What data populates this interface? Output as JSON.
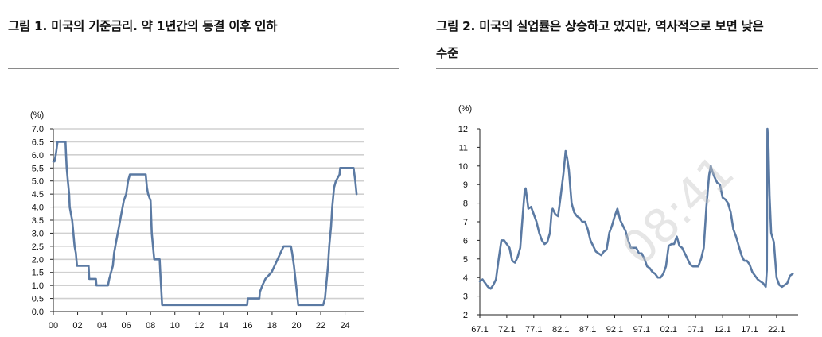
{
  "figures": [
    {
      "title_lines": [
        "그림 1. 미국의 기준금리. 약 1년간의 동결 이후 인하"
      ]
    },
    {
      "title_lines": [
        "그림 2. 미국의 실업률은 상승하고 있지만, 역사적으로 보면 낮은",
        "수준"
      ]
    }
  ],
  "watermark": "08:41",
  "colors": {
    "line": "#5b7aa3",
    "grid": "#d0d0d0",
    "axis": "#222222"
  },
  "chart_data": [
    {
      "type": "line",
      "title": "그림 1. 미국의 기준금리. 약 1년간의 동결 이후 인하",
      "unit_label": "(%)",
      "xlim": [
        2000,
        2025.6
      ],
      "ylim": [
        0,
        7
      ],
      "grid": true,
      "x_tick_values": [
        2000,
        2002,
        2004,
        2006,
        2008,
        2010,
        2012,
        2014,
        2016,
        2018,
        2020,
        2022,
        2024
      ],
      "x_tick_labels": [
        "00",
        "02",
        "04",
        "06",
        "08",
        "10",
        "12",
        "14",
        "16",
        "18",
        "20",
        "22",
        "24"
      ],
      "y_tick_values": [
        0,
        0.5,
        1,
        1.5,
        2,
        2.5,
        3,
        3.5,
        4,
        4.5,
        5,
        5.5,
        6,
        6.5,
        7
      ],
      "y_tick_labels": [
        "0.0",
        "0.5",
        "1.0",
        "1.5",
        "2.0",
        "2.5",
        "3.0",
        "3.5",
        "4.0",
        "4.5",
        "5.0",
        "5.5",
        "6.0",
        "6.5",
        "7.0"
      ],
      "series": [
        {
          "x": [
            2000.0,
            2000.1,
            2000.2,
            2000.35,
            2000.5,
            2001.0,
            2001.05,
            2001.1,
            2001.2,
            2001.3,
            2001.35,
            2001.45,
            2001.55,
            2001.65,
            2001.75,
            2001.85,
            2001.9,
            2001.95,
            2002.0,
            2002.9,
            2002.95,
            2003.5,
            2003.55,
            2004.5,
            2004.6,
            2004.75,
            2004.9,
            2005.0,
            2005.2,
            2005.4,
            2005.6,
            2005.8,
            2006.0,
            2006.15,
            2006.3,
            2006.5,
            2007.6,
            2007.7,
            2007.8,
            2008.0,
            2008.1,
            2008.25,
            2008.3,
            2008.75,
            2008.8,
            2008.95,
            2015.95,
            2016.0,
            2016.95,
            2017.0,
            2017.2,
            2017.45,
            2017.95,
            2018.2,
            2018.45,
            2018.7,
            2018.95,
            2019.55,
            2019.65,
            2019.8,
            2020.15,
            2020.2,
            2022.2,
            2022.35,
            2022.45,
            2022.6,
            2022.7,
            2022.85,
            2022.95,
            2023.1,
            2023.25,
            2023.55,
            2023.6,
            2024.7,
            2024.85,
            2024.95
          ],
          "y": [
            5.75,
            5.75,
            6.0,
            6.5,
            6.5,
            6.5,
            6.0,
            5.5,
            5.0,
            4.5,
            4.0,
            3.75,
            3.5,
            3.0,
            2.5,
            2.25,
            2.0,
            1.75,
            1.75,
            1.75,
            1.25,
            1.25,
            1.0,
            1.0,
            1.25,
            1.5,
            1.75,
            2.25,
            2.75,
            3.25,
            3.75,
            4.25,
            4.5,
            5.0,
            5.25,
            5.25,
            5.25,
            4.75,
            4.5,
            4.25,
            3.0,
            2.25,
            2.0,
            2.0,
            1.5,
            0.25,
            0.25,
            0.5,
            0.5,
            0.75,
            1.0,
            1.25,
            1.5,
            1.75,
            2.0,
            2.25,
            2.5,
            2.5,
            2.25,
            1.75,
            0.25,
            0.25,
            0.25,
            0.5,
            1.0,
            1.75,
            2.5,
            3.25,
            4.0,
            4.75,
            5.0,
            5.25,
            5.5,
            5.5,
            5.0,
            4.5
          ]
        }
      ]
    },
    {
      "type": "line",
      "title": "그림 2. 미국의 실업률은 상승하고 있지만, 역사적으로 보면 낮은 수준",
      "unit_label": "(%)",
      "xlim": [
        1967,
        2026
      ],
      "ylim": [
        2,
        12
      ],
      "grid": false,
      "x_tick_values": [
        1967,
        1972,
        1977,
        1982,
        1987,
        1992,
        1997,
        2002,
        2007,
        2012,
        2017,
        2022
      ],
      "x_tick_labels": [
        "67.1",
        "72.1",
        "77.1",
        "82.1",
        "87.1",
        "92.1",
        "97.1",
        "02.1",
        "07.1",
        "12.1",
        "17.1",
        "22.1"
      ],
      "y_tick_values": [
        2,
        3,
        4,
        5,
        6,
        7,
        8,
        9,
        10,
        11,
        12
      ],
      "y_tick_labels": [
        "2",
        "3",
        "4",
        "5",
        "6",
        "7",
        "8",
        "9",
        "10",
        "11",
        "12"
      ],
      "series": [
        {
          "x": [
            1967.0,
            1967.5,
            1968.0,
            1968.5,
            1969.0,
            1969.5,
            1970.0,
            1970.5,
            1971.0,
            1971.5,
            1972.0,
            1972.5,
            1973.0,
            1973.5,
            1974.0,
            1974.5,
            1975.0,
            1975.3,
            1975.5,
            1976.0,
            1976.5,
            1977.0,
            1977.5,
            1978.0,
            1978.5,
            1979.0,
            1979.5,
            1980.0,
            1980.3,
            1980.5,
            1981.0,
            1981.5,
            1982.0,
            1982.5,
            1982.9,
            1983.2,
            1983.5,
            1984.0,
            1984.5,
            1985.0,
            1985.5,
            1986.0,
            1986.5,
            1987.0,
            1987.5,
            1988.0,
            1988.5,
            1989.0,
            1989.5,
            1990.0,
            1990.5,
            1991.0,
            1991.5,
            1992.0,
            1992.5,
            1993.0,
            1993.5,
            1994.0,
            1994.5,
            1995.0,
            1995.5,
            1996.0,
            1996.5,
            1997.0,
            1997.5,
            1998.0,
            1998.5,
            1999.0,
            1999.5,
            2000.0,
            2000.5,
            2001.0,
            2001.5,
            2002.0,
            2002.5,
            2003.0,
            2003.5,
            2004.0,
            2004.5,
            2005.0,
            2005.5,
            2006.0,
            2006.5,
            2007.0,
            2007.5,
            2008.0,
            2008.5,
            2009.0,
            2009.5,
            2009.8,
            2010.0,
            2010.5,
            2011.0,
            2011.5,
            2012.0,
            2012.5,
            2013.0,
            2013.5,
            2014.0,
            2014.5,
            2015.0,
            2015.5,
            2016.0,
            2016.5,
            2017.0,
            2017.5,
            2018.0,
            2018.5,
            2019.0,
            2019.5,
            2020.0,
            2020.2,
            2020.3,
            2020.5,
            2020.7,
            2021.0,
            2021.5,
            2022.0,
            2022.5,
            2023.0,
            2023.5,
            2024.0,
            2024.5,
            2025.0
          ],
          "y": [
            3.8,
            3.9,
            3.7,
            3.5,
            3.4,
            3.6,
            3.9,
            5.0,
            6.0,
            6.0,
            5.8,
            5.6,
            4.9,
            4.8,
            5.1,
            5.6,
            7.5,
            8.6,
            8.8,
            7.7,
            7.8,
            7.4,
            7.0,
            6.4,
            6.0,
            5.8,
            5.9,
            6.4,
            7.5,
            7.7,
            7.4,
            7.3,
            8.4,
            9.6,
            10.8,
            10.4,
            9.8,
            8.0,
            7.5,
            7.3,
            7.2,
            7.0,
            7.0,
            6.6,
            6.0,
            5.7,
            5.4,
            5.3,
            5.2,
            5.4,
            5.5,
            6.4,
            6.8,
            7.3,
            7.7,
            7.1,
            6.8,
            6.5,
            6.0,
            5.6,
            5.6,
            5.6,
            5.3,
            5.3,
            5.0,
            4.6,
            4.5,
            4.3,
            4.2,
            4.0,
            4.0,
            4.2,
            4.6,
            5.7,
            5.8,
            5.8,
            6.2,
            5.7,
            5.6,
            5.3,
            5.0,
            4.7,
            4.6,
            4.6,
            4.6,
            5.0,
            5.6,
            7.8,
            9.5,
            10.0,
            9.8,
            9.4,
            9.1,
            9.0,
            8.3,
            8.2,
            8.0,
            7.5,
            6.6,
            6.2,
            5.7,
            5.2,
            4.9,
            4.9,
            4.7,
            4.3,
            4.1,
            3.9,
            3.8,
            3.7,
            3.5,
            4.4,
            14.7,
            11.1,
            8.4,
            6.4,
            5.9,
            4.0,
            3.6,
            3.5,
            3.6,
            3.7,
            4.1,
            4.2
          ]
        }
      ]
    }
  ]
}
